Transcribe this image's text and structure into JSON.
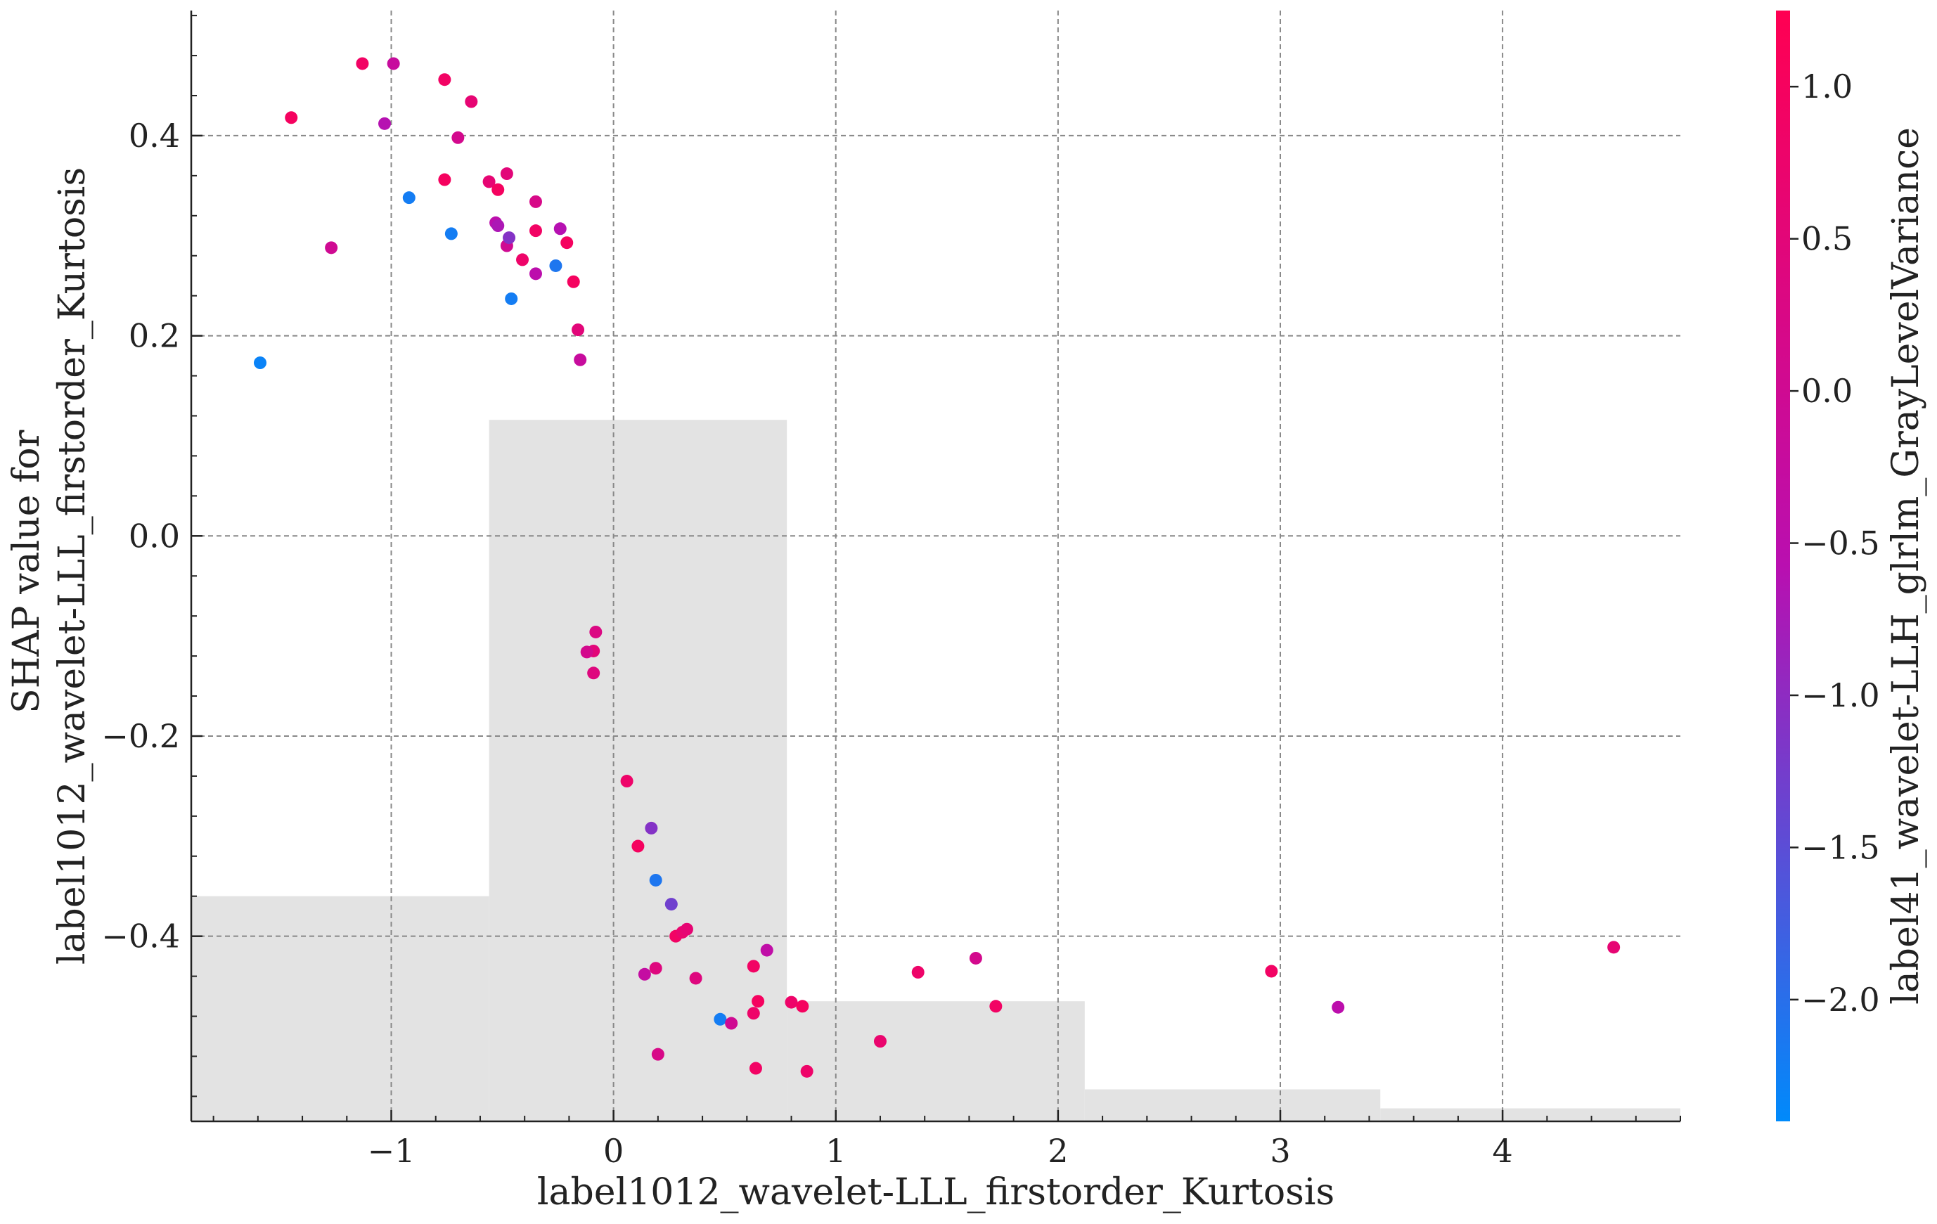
{
  "chart_data": {
    "type": "scatter",
    "xlabel": "label1012_wavelet-LLL_firstorder_Kurtosis",
    "ylabel_lines": [
      "SHAP value for",
      "label1012_wavelet-LLL_firstorder_Kurtosis"
    ],
    "xlim": [
      -1.9,
      4.8
    ],
    "ylim": [
      -0.585,
      0.525
    ],
    "x_ticks": [
      -1,
      0,
      1,
      2,
      3,
      4
    ],
    "x_tick_labels": [
      "−1",
      "0",
      "1",
      "2",
      "3",
      "4"
    ],
    "y_ticks": [
      -0.4,
      -0.2,
      0.0,
      0.2,
      0.4
    ],
    "y_tick_labels": [
      "−0.4",
      "−0.2",
      "0.0",
      "0.2",
      "0.4"
    ],
    "grid": true,
    "colorbar": {
      "label": "label41_wavelet-LLH_glrlm_GrayLevelVariance",
      "range": [
        -2.4,
        1.25
      ],
      "ticks": [
        1.0,
        0.5,
        0.0,
        -0.5,
        -1.0,
        -1.5,
        -2.0
      ],
      "tick_labels": [
        "1.0",
        "0.5",
        "0.0",
        "−0.5",
        "−1.0",
        "−1.5",
        "−2.0"
      ],
      "color_low": "#008afb",
      "color_mid": "#b90fb0",
      "color_high": "#ff0052"
    },
    "histogram": {
      "color": "#e3e3e3",
      "bins": [
        {
          "x0": -1.9,
          "x1": -0.56,
          "top": -0.36
        },
        {
          "x0": -0.56,
          "x1": 0.78,
          "top": 0.116
        },
        {
          "x0": 0.78,
          "x1": 2.12,
          "top": -0.465
        },
        {
          "x0": 2.12,
          "x1": 3.45,
          "top": -0.553
        },
        {
          "x0": 3.45,
          "x1": 4.8,
          "top": -0.572
        }
      ]
    },
    "points": [
      {
        "x": -1.59,
        "y": 0.173,
        "c": -2.3
      },
      {
        "x": -1.45,
        "y": 0.418,
        "c": 1.0
      },
      {
        "x": -1.27,
        "y": 0.288,
        "c": 0.0
      },
      {
        "x": -1.13,
        "y": 0.472,
        "c": 0.9
      },
      {
        "x": -1.03,
        "y": 0.412,
        "c": -0.6
      },
      {
        "x": -0.99,
        "y": 0.472,
        "c": -0.2
      },
      {
        "x": -0.92,
        "y": 0.338,
        "c": -2.2
      },
      {
        "x": -0.76,
        "y": 0.456,
        "c": 0.9
      },
      {
        "x": -0.76,
        "y": 0.356,
        "c": 1.0
      },
      {
        "x": -0.73,
        "y": 0.302,
        "c": -2.2
      },
      {
        "x": -0.7,
        "y": 0.398,
        "c": 0.1
      },
      {
        "x": -0.64,
        "y": 0.434,
        "c": 0.6
      },
      {
        "x": -0.56,
        "y": 0.354,
        "c": 0.6
      },
      {
        "x": -0.53,
        "y": 0.313,
        "c": -0.5
      },
      {
        "x": -0.52,
        "y": 0.346,
        "c": 1.0
      },
      {
        "x": -0.52,
        "y": 0.31,
        "c": -0.7
      },
      {
        "x": -0.48,
        "y": 0.362,
        "c": 0.5
      },
      {
        "x": -0.48,
        "y": 0.29,
        "c": 0.0
      },
      {
        "x": -0.47,
        "y": 0.298,
        "c": -1.1
      },
      {
        "x": -0.46,
        "y": 0.237,
        "c": -2.2
      },
      {
        "x": -0.41,
        "y": 0.276,
        "c": 0.8
      },
      {
        "x": -0.35,
        "y": 0.334,
        "c": 0.2
      },
      {
        "x": -0.35,
        "y": 0.305,
        "c": 0.9
      },
      {
        "x": -0.35,
        "y": 0.262,
        "c": -0.5
      },
      {
        "x": -0.26,
        "y": 0.27,
        "c": -2.1
      },
      {
        "x": -0.24,
        "y": 0.307,
        "c": -0.6
      },
      {
        "x": -0.21,
        "y": 0.293,
        "c": 1.0
      },
      {
        "x": -0.18,
        "y": 0.254,
        "c": 1.0
      },
      {
        "x": -0.16,
        "y": 0.206,
        "c": 0.5
      },
      {
        "x": -0.15,
        "y": 0.176,
        "c": -0.2
      },
      {
        "x": -0.08,
        "y": -0.096,
        "c": 0.3
      },
      {
        "x": -0.09,
        "y": -0.115,
        "c": 0.5
      },
      {
        "x": -0.12,
        "y": -0.116,
        "c": 0.1
      },
      {
        "x": -0.09,
        "y": -0.137,
        "c": 0.4
      },
      {
        "x": 0.06,
        "y": -0.245,
        "c": 0.8
      },
      {
        "x": 0.11,
        "y": -0.31,
        "c": 1.0
      },
      {
        "x": 0.17,
        "y": -0.292,
        "c": -1.1
      },
      {
        "x": 0.19,
        "y": -0.344,
        "c": -2.1
      },
      {
        "x": 0.26,
        "y": -0.368,
        "c": -1.3
      },
      {
        "x": 0.28,
        "y": -0.4,
        "c": 0.9
      },
      {
        "x": 0.31,
        "y": -0.396,
        "c": 0.7
      },
      {
        "x": 0.33,
        "y": -0.393,
        "c": 0.6
      },
      {
        "x": 0.19,
        "y": -0.432,
        "c": 0.4
      },
      {
        "x": 0.14,
        "y": -0.438,
        "c": -0.3
      },
      {
        "x": 0.37,
        "y": -0.442,
        "c": 0.4
      },
      {
        "x": 0.69,
        "y": -0.414,
        "c": -0.4
      },
      {
        "x": 0.63,
        "y": -0.43,
        "c": 0.9
      },
      {
        "x": 0.65,
        "y": -0.465,
        "c": 1.0
      },
      {
        "x": 0.63,
        "y": -0.477,
        "c": 0.8
      },
      {
        "x": 0.8,
        "y": -0.466,
        "c": 0.8
      },
      {
        "x": 0.85,
        "y": -0.47,
        "c": 1.0
      },
      {
        "x": 0.48,
        "y": -0.483,
        "c": -2.2
      },
      {
        "x": 0.53,
        "y": -0.487,
        "c": 0.0
      },
      {
        "x": 0.2,
        "y": -0.518,
        "c": 0.2
      },
      {
        "x": 0.64,
        "y": -0.532,
        "c": 0.9
      },
      {
        "x": 0.87,
        "y": -0.535,
        "c": 0.8
      },
      {
        "x": 1.2,
        "y": -0.505,
        "c": 0.7
      },
      {
        "x": 1.37,
        "y": -0.436,
        "c": 0.8
      },
      {
        "x": 1.63,
        "y": -0.422,
        "c": 0.1
      },
      {
        "x": 1.72,
        "y": -0.47,
        "c": 0.9
      },
      {
        "x": 2.96,
        "y": -0.435,
        "c": 0.9
      },
      {
        "x": 3.26,
        "y": -0.471,
        "c": -0.5
      },
      {
        "x": 4.5,
        "y": -0.411,
        "c": 0.6
      }
    ]
  }
}
